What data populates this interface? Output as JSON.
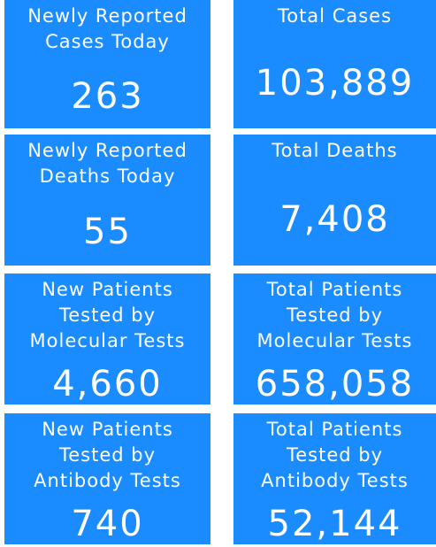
{
  "tiles": [
    {
      "label": [
        "Newly Reported",
        "Cases Today"
      ],
      "value": "263"
    },
    {
      "label": [
        "Total Cases"
      ],
      "value": "103,889"
    },
    {
      "label": [
        "Newly Reported",
        "Deaths Today"
      ],
      "value": "55"
    },
    {
      "label": [
        "Total Deaths"
      ],
      "value": "7,408"
    },
    {
      "label": [
        "New Patients",
        "Tested by",
        "Molecular Tests"
      ],
      "value": "4,660"
    },
    {
      "label": [
        "Total Patients",
        "Tested by",
        "Molecular Tests"
      ],
      "value": "658,058"
    },
    {
      "label": [
        "New Patients",
        "Tested by",
        "Antibody Tests"
      ],
      "value": "740"
    },
    {
      "label": [
        "Total Patients",
        "Tested by",
        "Antibody Tests"
      ],
      "value": "52,144"
    }
  ]
}
